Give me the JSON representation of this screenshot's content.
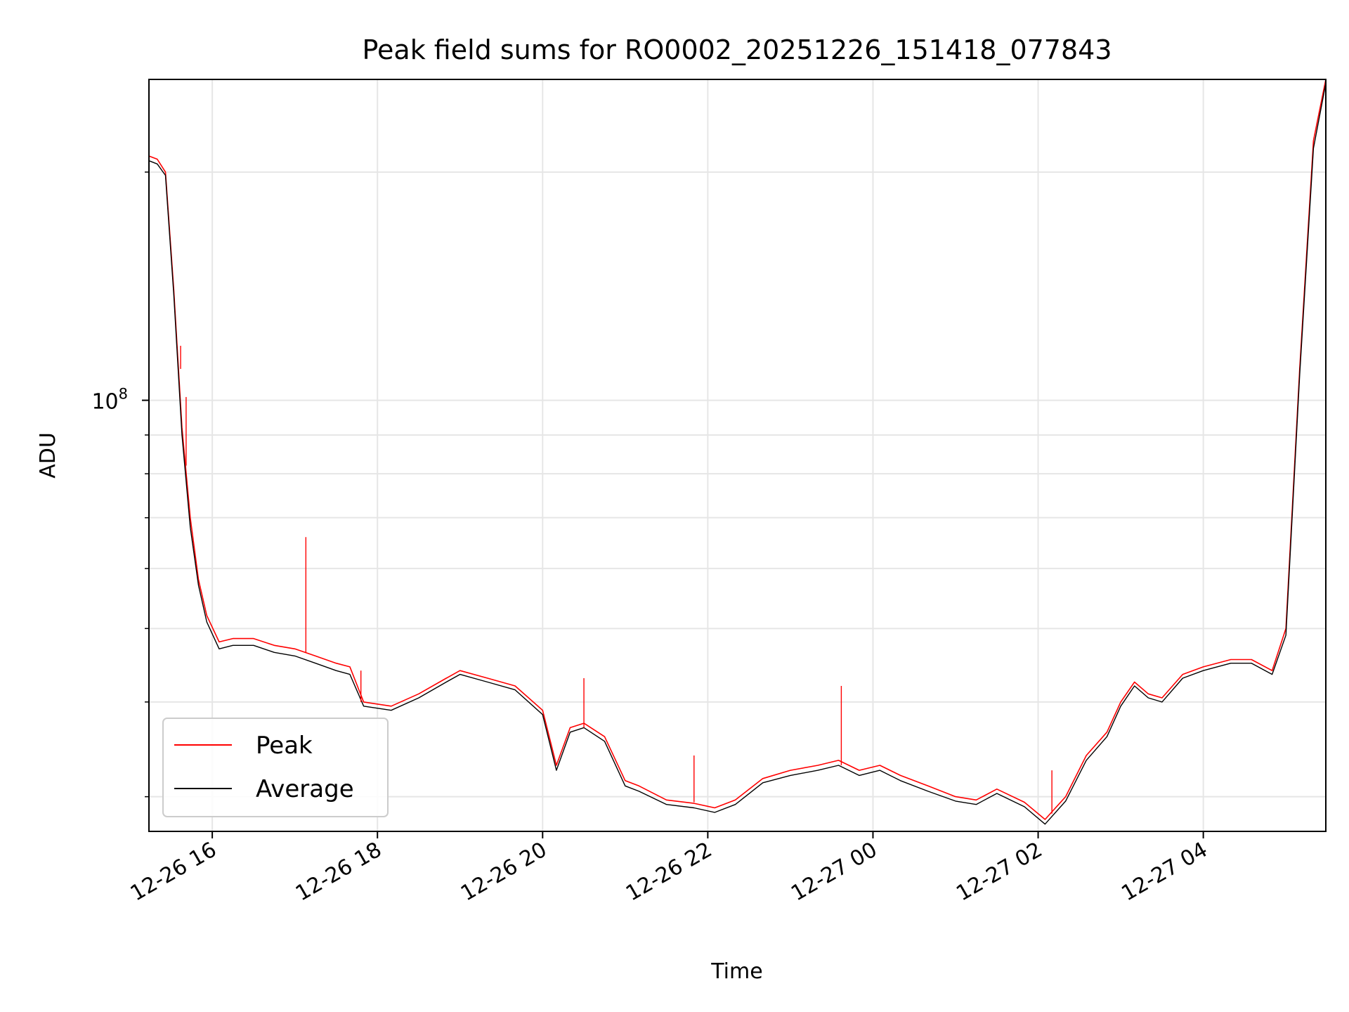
{
  "chart_data": {
    "type": "line",
    "title": "Peak field sums for RO0002_20251226_151418_077843",
    "xlabel": "Time",
    "ylabel": "ADU",
    "yscale": "log",
    "x_unit": "datetime",
    "xlim": [
      "2025-12-26 15:14",
      "2025-12-27 05:29"
    ],
    "ylim": [
      27000000,
      265000000
    ],
    "grid": true,
    "legend_position": "lower-left",
    "x_ticks": [
      {
        "value": "2025-12-26 16:00",
        "label": "12-26 16"
      },
      {
        "value": "2025-12-26 18:00",
        "label": "12-26 18"
      },
      {
        "value": "2025-12-26 20:00",
        "label": "12-26 20"
      },
      {
        "value": "2025-12-26 22:00",
        "label": "12-26 22"
      },
      {
        "value": "2025-12-27 00:00",
        "label": "12-27 00"
      },
      {
        "value": "2025-12-27 02:00",
        "label": "12-27 02"
      },
      {
        "value": "2025-12-27 04:00",
        "label": "12-27 04"
      }
    ],
    "y_major_ticks": [
      {
        "value": 100000000,
        "base": "10",
        "exponent": "8"
      }
    ],
    "y_minor_ticks": [
      30000000,
      40000000,
      50000000,
      60000000,
      70000000,
      80000000,
      90000000,
      200000000
    ],
    "x": [
      "2025-12-26 15:14",
      "2025-12-26 15:20",
      "2025-12-26 15:26",
      "2025-12-26 15:32",
      "2025-12-26 15:38",
      "2025-12-26 15:44",
      "2025-12-26 15:50",
      "2025-12-26 15:56",
      "2025-12-26 16:05",
      "2025-12-26 16:15",
      "2025-12-26 16:30",
      "2025-12-26 16:45",
      "2025-12-26 17:00",
      "2025-12-26 17:15",
      "2025-12-26 17:30",
      "2025-12-26 17:40",
      "2025-12-26 17:50",
      "2025-12-26 18:10",
      "2025-12-26 18:30",
      "2025-12-26 18:50",
      "2025-12-26 19:00",
      "2025-12-26 19:20",
      "2025-12-26 19:40",
      "2025-12-26 20:00",
      "2025-12-26 20:10",
      "2025-12-26 20:20",
      "2025-12-26 20:30",
      "2025-12-26 20:45",
      "2025-12-26 21:00",
      "2025-12-26 21:10",
      "2025-12-26 21:30",
      "2025-12-26 21:50",
      "2025-12-26 22:05",
      "2025-12-26 22:20",
      "2025-12-26 22:40",
      "2025-12-26 23:00",
      "2025-12-26 23:20",
      "2025-12-26 23:35",
      "2025-12-26 23:50",
      "2025-12-27 00:05",
      "2025-12-27 00:20",
      "2025-12-27 00:40",
      "2025-12-27 01:00",
      "2025-12-27 01:15",
      "2025-12-27 01:30",
      "2025-12-27 01:50",
      "2025-12-27 02:05",
      "2025-12-27 02:20",
      "2025-12-27 02:35",
      "2025-12-27 02:50",
      "2025-12-27 03:00",
      "2025-12-27 03:10",
      "2025-12-27 03:20",
      "2025-12-27 03:30",
      "2025-12-27 03:45",
      "2025-12-27 04:00",
      "2025-12-27 04:20",
      "2025-12-27 04:35",
      "2025-12-27 04:50",
      "2025-12-27 05:00",
      "2025-12-27 05:10",
      "2025-12-27 05:20",
      "2025-12-27 05:29"
    ],
    "series": [
      {
        "name": "Peak",
        "color": "#ff0000",
        "values": [
          210000000,
          208000000,
          200000000,
          140000000,
          92000000,
          70000000,
          58000000,
          52000000,
          48000000,
          48500000,
          48500000,
          47500000,
          47000000,
          46000000,
          45000000,
          44500000,
          40000000,
          39500000,
          41000000,
          43000000,
          44000000,
          43000000,
          42000000,
          39000000,
          33000000,
          37000000,
          37500000,
          36000000,
          31500000,
          31000000,
          29700000,
          29400000,
          29000000,
          29700000,
          31700000,
          32500000,
          33000000,
          33500000,
          32500000,
          33000000,
          32000000,
          31000000,
          30000000,
          29700000,
          30700000,
          29500000,
          28000000,
          30000000,
          34000000,
          36500000,
          40000000,
          42500000,
          41000000,
          40500000,
          43500000,
          44500000,
          45500000,
          45500000,
          44000000,
          50000000,
          110000000,
          220000000,
          265000000
        ]
      },
      {
        "name": "Average",
        "color": "#000000",
        "values": [
          207000000,
          205000000,
          198000000,
          138000000,
          90000000,
          68000000,
          57000000,
          51000000,
          47000000,
          47500000,
          47500000,
          46500000,
          46000000,
          45000000,
          44000000,
          43500000,
          39500000,
          39000000,
          40500000,
          42500000,
          43500000,
          42500000,
          41500000,
          38500000,
          32500000,
          36500000,
          37000000,
          35500000,
          31000000,
          30500000,
          29300000,
          29000000,
          28600000,
          29300000,
          31300000,
          32000000,
          32500000,
          33000000,
          32000000,
          32500000,
          31500000,
          30500000,
          29600000,
          29300000,
          30300000,
          29100000,
          27600000,
          29600000,
          33500000,
          36000000,
          39500000,
          42000000,
          40500000,
          40000000,
          43000000,
          44000000,
          45000000,
          45000000,
          43500000,
          49000000,
          108000000,
          215000000,
          262000000
        ]
      }
    ],
    "spikes": [
      {
        "series": "Peak",
        "x": "2025-12-26 15:37",
        "base": 110000000,
        "value": 118000000
      },
      {
        "series": "Peak",
        "x": "2025-12-26 15:41",
        "base": 82000000,
        "value": 101000000
      },
      {
        "series": "Peak",
        "x": "2025-12-26 17:08",
        "base": 46500000,
        "value": 66000000
      },
      {
        "series": "Peak",
        "x": "2025-12-26 17:48",
        "base": 40000000,
        "value": 44000000
      },
      {
        "series": "Peak",
        "x": "2025-12-26 20:30",
        "base": 37000000,
        "value": 43000000
      },
      {
        "series": "Peak",
        "x": "2025-12-26 21:50",
        "base": 29500000,
        "value": 34000000
      },
      {
        "series": "Peak",
        "x": "2025-12-26 23:37",
        "base": 33000000,
        "value": 42000000
      },
      {
        "series": "Peak",
        "x": "2025-12-27 02:10",
        "base": 28500000,
        "value": 32500000
      }
    ]
  }
}
